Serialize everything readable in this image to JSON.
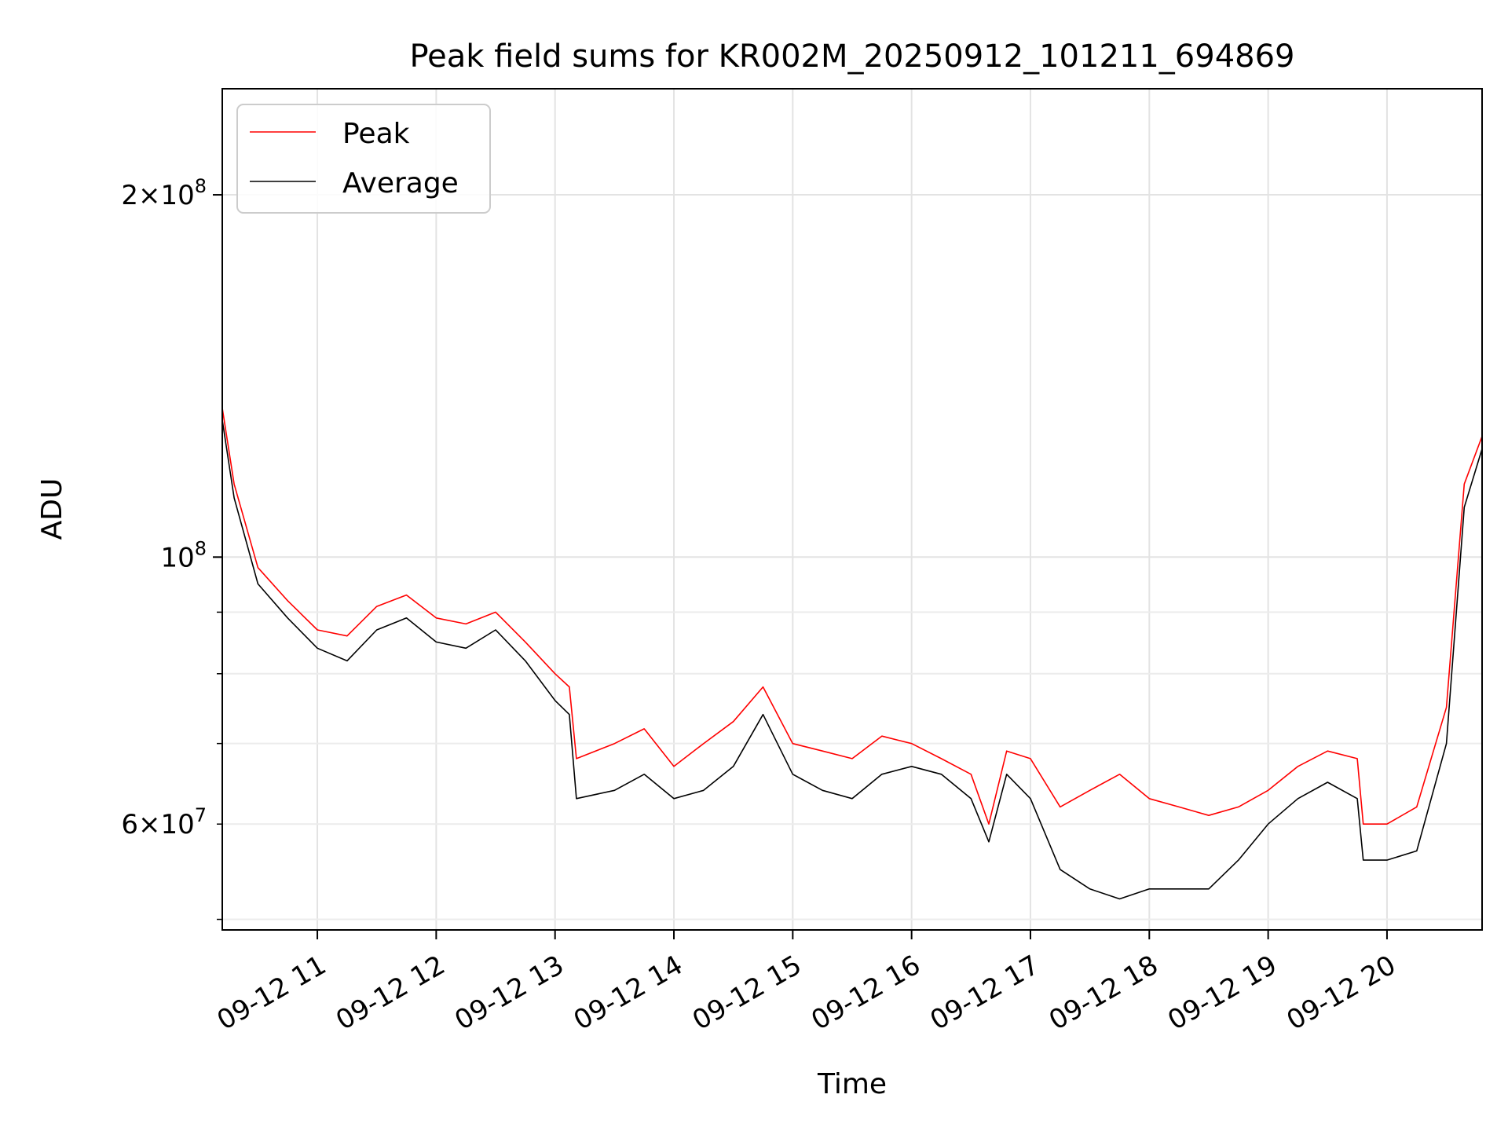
{
  "chart_data": {
    "type": "line",
    "title": "Peak field sums for KR002M_20250912_101211_694869",
    "xlabel": "Time",
    "ylabel": "ADU",
    "yscale": "log",
    "ylim": [
      49000000,
      245000000
    ],
    "xlim_hours": [
      10.2,
      20.8
    ],
    "grid": true,
    "legend": "top-left",
    "x_ticks": [
      {
        "hour": 11,
        "label": "09-12 11"
      },
      {
        "hour": 12,
        "label": "09-12 12"
      },
      {
        "hour": 13,
        "label": "09-12 13"
      },
      {
        "hour": 14,
        "label": "09-12 14"
      },
      {
        "hour": 15,
        "label": "09-12 15"
      },
      {
        "hour": 16,
        "label": "09-12 16"
      },
      {
        "hour": 17,
        "label": "09-12 17"
      },
      {
        "hour": 18,
        "label": "09-12 18"
      },
      {
        "hour": 19,
        "label": "09-12 19"
      },
      {
        "hour": 20,
        "label": "09-12 20"
      }
    ],
    "y_major_ticks": [
      {
        "value": 100000000,
        "base": "10",
        "exp": "8",
        "mant": ""
      },
      {
        "value": 200000000,
        "base": "10",
        "exp": "8",
        "mant": "2×"
      }
    ],
    "y_minor_ticks": [
      {
        "value": 60000000,
        "base": "10",
        "exp": "7",
        "mant": "6×"
      },
      {
        "value": 50000000
      },
      {
        "value": 70000000
      },
      {
        "value": 80000000
      },
      {
        "value": 90000000
      }
    ],
    "series": [
      {
        "name": "Peak",
        "color": "#ff0000",
        "x": [
          10.2,
          10.3,
          10.5,
          10.75,
          11.0,
          11.25,
          11.5,
          11.75,
          12.0,
          12.25,
          12.5,
          12.75,
          13.0,
          13.12,
          13.18,
          13.5,
          13.75,
          14.0,
          14.25,
          14.5,
          14.75,
          15.0,
          15.25,
          15.5,
          15.75,
          16.0,
          16.25,
          16.5,
          16.65,
          16.8,
          17.0,
          17.25,
          17.5,
          17.75,
          18.0,
          18.25,
          18.5,
          18.75,
          19.0,
          19.25,
          19.5,
          19.75,
          19.8,
          20.0,
          20.25,
          20.5,
          20.65,
          20.8
        ],
        "y": [
          133000000,
          115000000,
          98000000,
          92000000,
          87000000,
          86000000,
          91000000,
          93000000,
          89000000,
          88000000,
          90000000,
          85000000,
          80000000,
          78000000,
          68000000,
          70000000,
          72000000,
          67000000,
          70000000,
          73000000,
          78000000,
          70000000,
          69000000,
          68000000,
          71000000,
          70000000,
          68000000,
          66000000,
          60000000,
          69000000,
          68000000,
          62000000,
          64000000,
          66000000,
          63000000,
          62000000,
          61000000,
          62000000,
          64000000,
          67000000,
          69000000,
          68000000,
          60000000,
          60000000,
          62000000,
          75000000,
          115000000,
          126000000
        ]
      },
      {
        "name": "Average",
        "color": "#000000",
        "x": [
          10.2,
          10.3,
          10.5,
          10.75,
          11.0,
          11.25,
          11.5,
          11.75,
          12.0,
          12.25,
          12.5,
          12.75,
          13.0,
          13.12,
          13.18,
          13.5,
          13.75,
          14.0,
          14.25,
          14.5,
          14.75,
          15.0,
          15.25,
          15.5,
          15.75,
          16.0,
          16.25,
          16.5,
          16.65,
          16.8,
          17.0,
          17.25,
          17.5,
          17.75,
          18.0,
          18.25,
          18.5,
          18.75,
          19.0,
          19.25,
          19.5,
          19.75,
          19.8,
          20.0,
          20.25,
          20.5,
          20.65,
          20.8
        ],
        "y": [
          130000000,
          112000000,
          95000000,
          89000000,
          84000000,
          82000000,
          87000000,
          89000000,
          85000000,
          84000000,
          87000000,
          82000000,
          76000000,
          74000000,
          63000000,
          64000000,
          66000000,
          63000000,
          64000000,
          67000000,
          74000000,
          66000000,
          64000000,
          63000000,
          66000000,
          67000000,
          66000000,
          63000000,
          58000000,
          66000000,
          63000000,
          55000000,
          53000000,
          52000000,
          53000000,
          53000000,
          53000000,
          56000000,
          60000000,
          63000000,
          65000000,
          63000000,
          56000000,
          56000000,
          57000000,
          70000000,
          110000000,
          123000000
        ]
      }
    ]
  }
}
